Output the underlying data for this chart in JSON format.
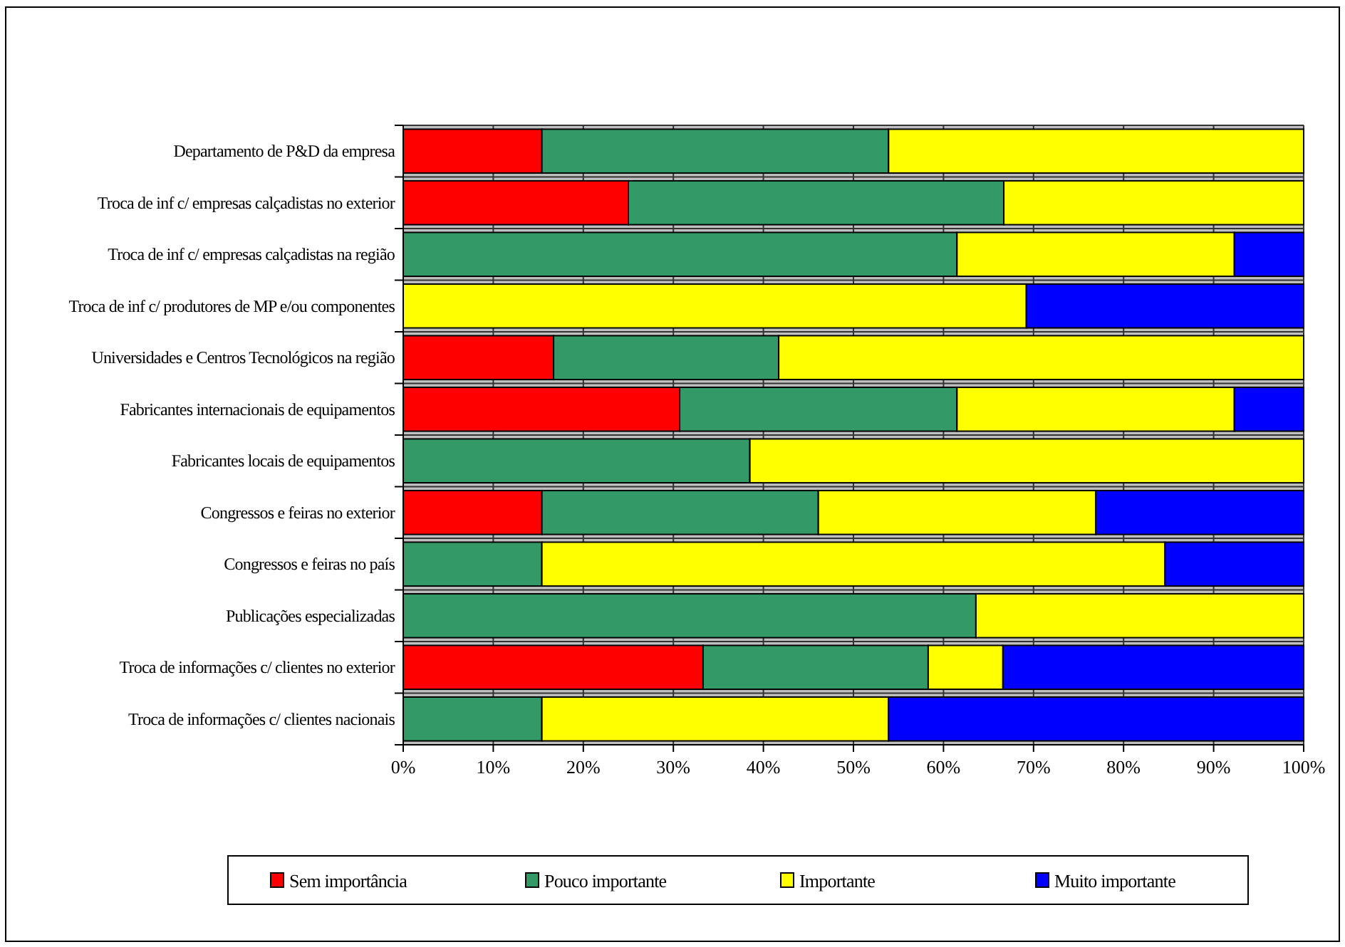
{
  "chart_data": {
    "type": "bar",
    "orientation": "horizontal",
    "stacked": true,
    "categories": [
      "Departamento de P&D da empresa",
      "Troca de inf c/  empresas calçadistas no exterior",
      "Troca de inf c/  empresas calçadistas na região",
      "Troca de inf c/ produtores de MP e/ou componentes",
      "Universidades e Centros Tecnológicos na região",
      "Fabricantes internacionais de equipamentos",
      "Fabricantes locais de equipamentos",
      "Congressos e feiras no exterior",
      "Congressos e feiras no país",
      "Publicações especializadas",
      "Troca de informações c/ clientes no exterior",
      "Troca de informações c/ clientes nacionais"
    ],
    "series": [
      {
        "name": "Sem importância",
        "color": "#ff0000",
        "values": [
          15.4,
          25,
          0,
          0,
          16.7,
          30.7,
          0,
          15.4,
          0,
          0,
          33.3,
          0
        ]
      },
      {
        "name": "Pouco importante",
        "color": "#339966",
        "values": [
          38.5,
          41.7,
          61.5,
          0,
          25,
          30.8,
          38.5,
          30.7,
          15.4,
          63.6,
          25,
          15.4
        ]
      },
      {
        "name": "Importante",
        "color": "#ffff00",
        "values": [
          46.1,
          33.3,
          30.8,
          69.2,
          58.3,
          30.8,
          61.5,
          30.8,
          69.2,
          36.4,
          8.3,
          38.5
        ]
      },
      {
        "name": "Muito importante",
        "color": "#0000ff",
        "values": [
          0,
          0,
          7.7,
          30.8,
          0,
          7.7,
          0,
          23.1,
          15.4,
          0,
          33.4,
          46.1
        ]
      }
    ],
    "xlim": [
      0,
      100
    ],
    "xticks": [
      {
        "value": 0,
        "label": "0%"
      },
      {
        "value": 10,
        "label": "10%"
      },
      {
        "value": 20,
        "label": "20%"
      },
      {
        "value": 30,
        "label": "30%"
      },
      {
        "value": 40,
        "label": "40%"
      },
      {
        "value": 50,
        "label": "50%"
      },
      {
        "value": 60,
        "label": "60%"
      },
      {
        "value": 70,
        "label": "70%"
      },
      {
        "value": 80,
        "label": "80%"
      },
      {
        "value": 90,
        "label": "90%"
      },
      {
        "value": 100,
        "label": "100%"
      }
    ],
    "grid": "x",
    "legend": "bottom"
  }
}
